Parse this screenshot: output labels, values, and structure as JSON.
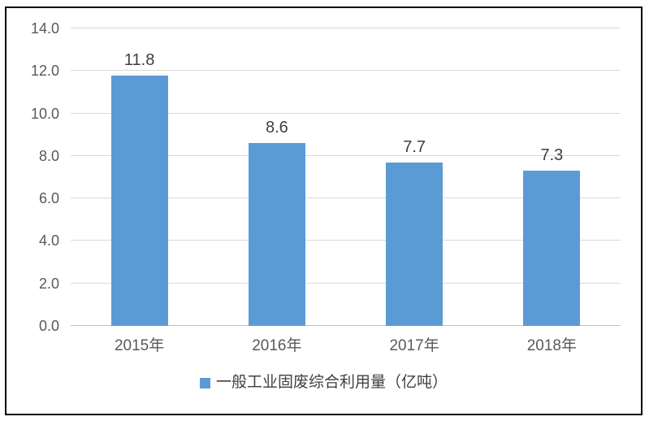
{
  "chart_data": {
    "type": "bar",
    "title": "",
    "xlabel": "",
    "ylabel": "",
    "categories": [
      "2015年",
      "2016年",
      "2017年",
      "2018年"
    ],
    "values": [
      11.8,
      8.6,
      7.7,
      7.3
    ],
    "data_labels": [
      "11.8",
      "8.6",
      "7.7",
      "7.3"
    ],
    "series_name": "一般工业固废综合利用量（亿吨）",
    "ylim": [
      0,
      14
    ],
    "ytick_step": 2,
    "ytick_labels": [
      "0.0",
      "2.0",
      "4.0",
      "6.0",
      "8.0",
      "10.0",
      "12.0",
      "14.0"
    ],
    "grid": true,
    "legend_position": "bottom",
    "colors": {
      "bar": "#5B9BD5",
      "gridline": "#D9D9D9",
      "axis_line": "#BFBFBF",
      "tick_text": "#595959",
      "data_label_text": "#3F3F3F",
      "legend_text": "#404040",
      "frame_border": "#000000",
      "background": "#FFFFFF"
    }
  },
  "legend": {
    "label": "一般工业固废综合利用量（亿吨）"
  }
}
